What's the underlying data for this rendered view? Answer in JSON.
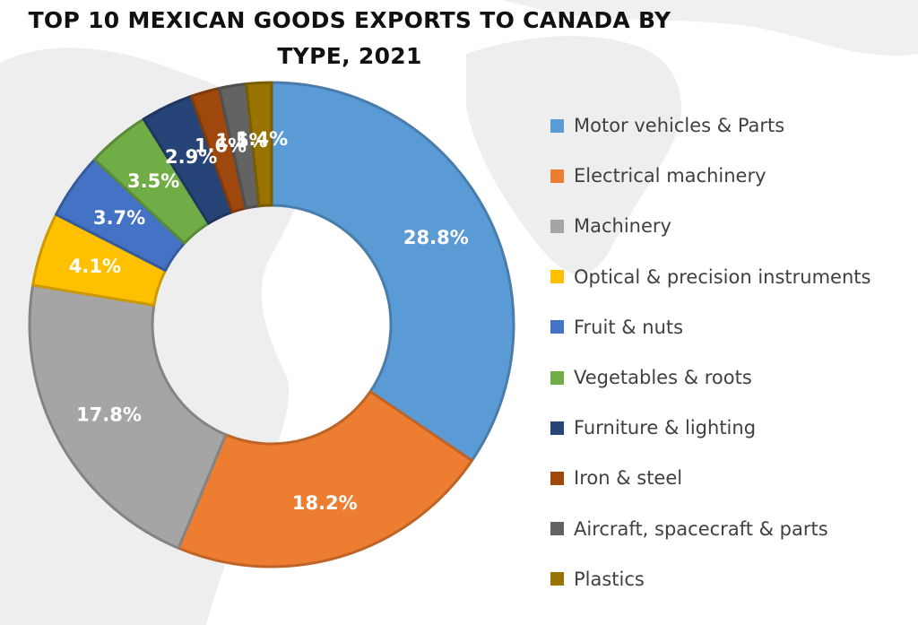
{
  "chart_data": {
    "type": "pie",
    "subtype": "donut",
    "title_lines": [
      "TOP 10 MEXICAN GOODS EXPORTS TO CANADA BY",
      "TYPE, 2021"
    ],
    "legend_position": "right",
    "slices": [
      {
        "label": "Motor vehicles & Parts",
        "value": 28.8,
        "display": "28.8%",
        "color": "#5B9BD5"
      },
      {
        "label": "Electrical machinery",
        "value": 18.2,
        "display": "18.2%",
        "color": "#ED7D31"
      },
      {
        "label": "Machinery",
        "value": 17.8,
        "display": "17.8%",
        "color": "#A5A5A5"
      },
      {
        "label": "Optical & precision instruments",
        "value": 4.1,
        "display": "4.1%",
        "color": "#FFC000"
      },
      {
        "label": "Fruit & nuts",
        "value": 3.7,
        "display": "3.7%",
        "color": "#4472C4"
      },
      {
        "label": "Vegetables & roots",
        "value": 3.5,
        "display": "3.5%",
        "color": "#70AD47"
      },
      {
        "label": "Furniture & lighting",
        "value": 2.9,
        "display": "2.9%",
        "color": "#264478"
      },
      {
        "label": "Iron & steel",
        "value": 1.6,
        "display": "1.6%",
        "color": "#9E480E"
      },
      {
        "label": "Aircraft, spacecraft & parts",
        "value": 1.5,
        "display": "1.5%",
        "color": "#636363"
      },
      {
        "label": "Plastics",
        "value": 1.4,
        "display": "1.4%",
        "color": "#997300"
      }
    ]
  }
}
